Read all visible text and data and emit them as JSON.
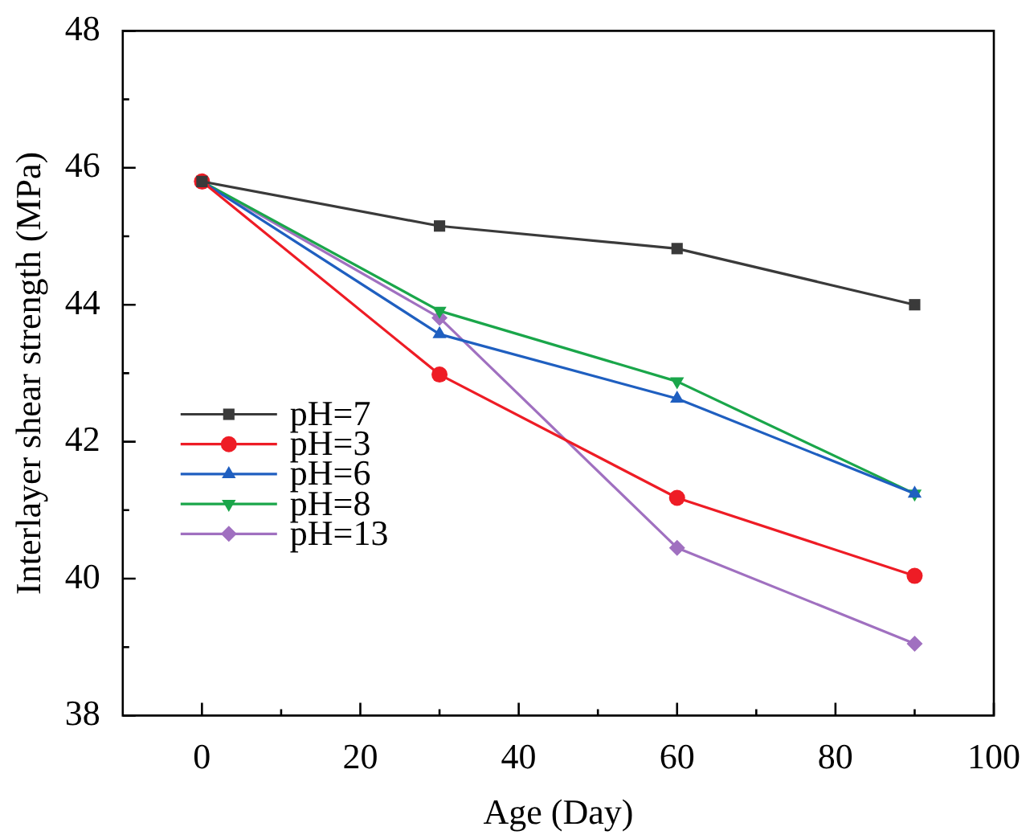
{
  "chart_data": {
    "type": "line",
    "xlabel": "Age (Day)",
    "ylabel": "Interlayer shear strength (MPa)",
    "x": [
      0,
      30,
      60,
      90
    ],
    "series": [
      {
        "name": "pH=7",
        "color": "#3a3a3a",
        "marker": "square",
        "values": [
          45.8,
          45.15,
          44.82,
          44.0
        ]
      },
      {
        "name": "pH=3",
        "color": "#ee1c25",
        "marker": "circle",
        "values": [
          45.8,
          42.98,
          41.18,
          40.04
        ]
      },
      {
        "name": "pH=6",
        "color": "#1f5fc0",
        "marker": "triangle",
        "values": [
          45.8,
          43.57,
          42.63,
          41.24
        ]
      },
      {
        "name": "pH=8",
        "color": "#1aa64a",
        "marker": "triangle-down",
        "values": [
          45.8,
          43.91,
          42.88,
          41.24
        ]
      },
      {
        "name": "pH=13",
        "color": "#a070c0",
        "marker": "diamond",
        "values": [
          45.8,
          43.81,
          40.45,
          39.05
        ]
      }
    ],
    "xlim": [
      -10,
      100
    ],
    "xticks": [
      0,
      {
        "value": 10,
        "label": null
      },
      20,
      {
        "value": 30,
        "label": null
      },
      40,
      {
        "value": 50,
        "label": null
      },
      60,
      {
        "value": 70,
        "label": null
      },
      80,
      {
        "value": 90,
        "label": null
      },
      100
    ],
    "ylim": [
      38,
      48
    ],
    "yticks": [
      38,
      {
        "value": 39,
        "label": null
      },
      40,
      {
        "value": 41,
        "label": null
      },
      42,
      {
        "value": 43,
        "label": null
      },
      44,
      {
        "value": 45,
        "label": null
      },
      46,
      {
        "value": 47,
        "label": null
      },
      48
    ],
    "legend": "left",
    "grid": false,
    "line_style": "solid"
  }
}
